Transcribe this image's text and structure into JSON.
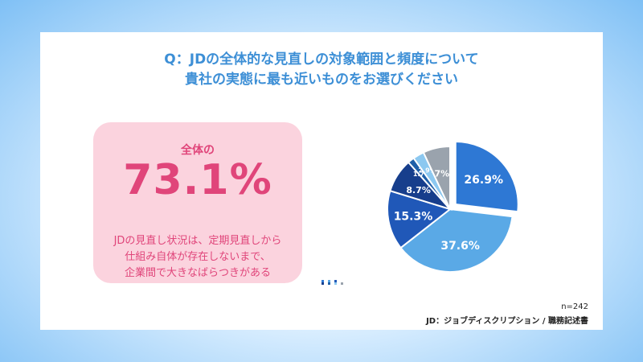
{
  "title": {
    "line1": "Q：JDの全体的な見直しの対象範囲と頻度について",
    "line2": "貴社の実態に最も近いものをお選びください"
  },
  "callout": {
    "lead": "全体の",
    "value": "73.1%",
    "desc_line1": "JDの見直し状況は、定期見直しから",
    "desc_line2": "仕組み自体が存在しないまで、",
    "desc_line3": "企業間で大きなばらつきがある"
  },
  "note_n": "n=242",
  "source": "JD：ジョブディスクリプション / 職務記述書",
  "chart_data": {
    "type": "pie",
    "slices": [
      {
        "label": "26.9%",
        "value": 26.9,
        "color": "#2e78d4",
        "exploded": true
      },
      {
        "label": "37.6%",
        "value": 37.6,
        "color": "#5aa9e6"
      },
      {
        "label": "15.3%",
        "value": 15.3,
        "color": "#2058b8"
      },
      {
        "label": "8.7%",
        "value": 8.7,
        "color": "#173e8c"
      },
      {
        "label": "1.7%",
        "value": 1.7,
        "color": "#1f5fa8"
      },
      {
        "label": "2.9%",
        "value": 2.9,
        "color": "#8cc8f0"
      },
      {
        "label": "7%",
        "value": 7.0,
        "color": "#9aa3ad"
      }
    ]
  }
}
